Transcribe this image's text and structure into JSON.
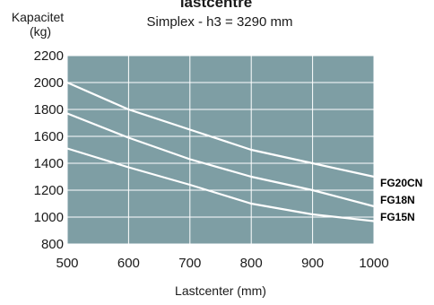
{
  "chart_data": {
    "type": "line",
    "title": "lastcentre",
    "subtitle": "Simplex - h3 = 3290 mm",
    "ylabel_line1": "Kapacitet",
    "ylabel_line2": "(kg)",
    "xlabel": "Lastcenter (mm)",
    "xlim": [
      500,
      1000
    ],
    "ylim": [
      800,
      2200
    ],
    "xticks": [
      500,
      600,
      700,
      800,
      900,
      1000
    ],
    "yticks": [
      800,
      1000,
      1200,
      1400,
      1600,
      1800,
      2000,
      2200
    ],
    "grid": true,
    "colors": {
      "plot_background": "#7e9ea4",
      "grid": "#ffffff",
      "series_line": "#ffffff",
      "text": "#1a1a1a",
      "label_text": "#000000"
    },
    "series": [
      {
        "name": "FG20CN",
        "x": [
          500,
          600,
          700,
          800,
          900,
          1000
        ],
        "y": [
          2000,
          1800,
          1650,
          1500,
          1400,
          1300
        ]
      },
      {
        "name": "FG18N",
        "x": [
          500,
          600,
          700,
          800,
          900,
          1000
        ],
        "y": [
          1770,
          1590,
          1430,
          1300,
          1200,
          1080
        ]
      },
      {
        "name": "FG15N",
        "x": [
          500,
          600,
          700,
          800,
          900,
          1000
        ],
        "y": [
          1510,
          1370,
          1240,
          1100,
          1020,
          970
        ]
      }
    ]
  }
}
